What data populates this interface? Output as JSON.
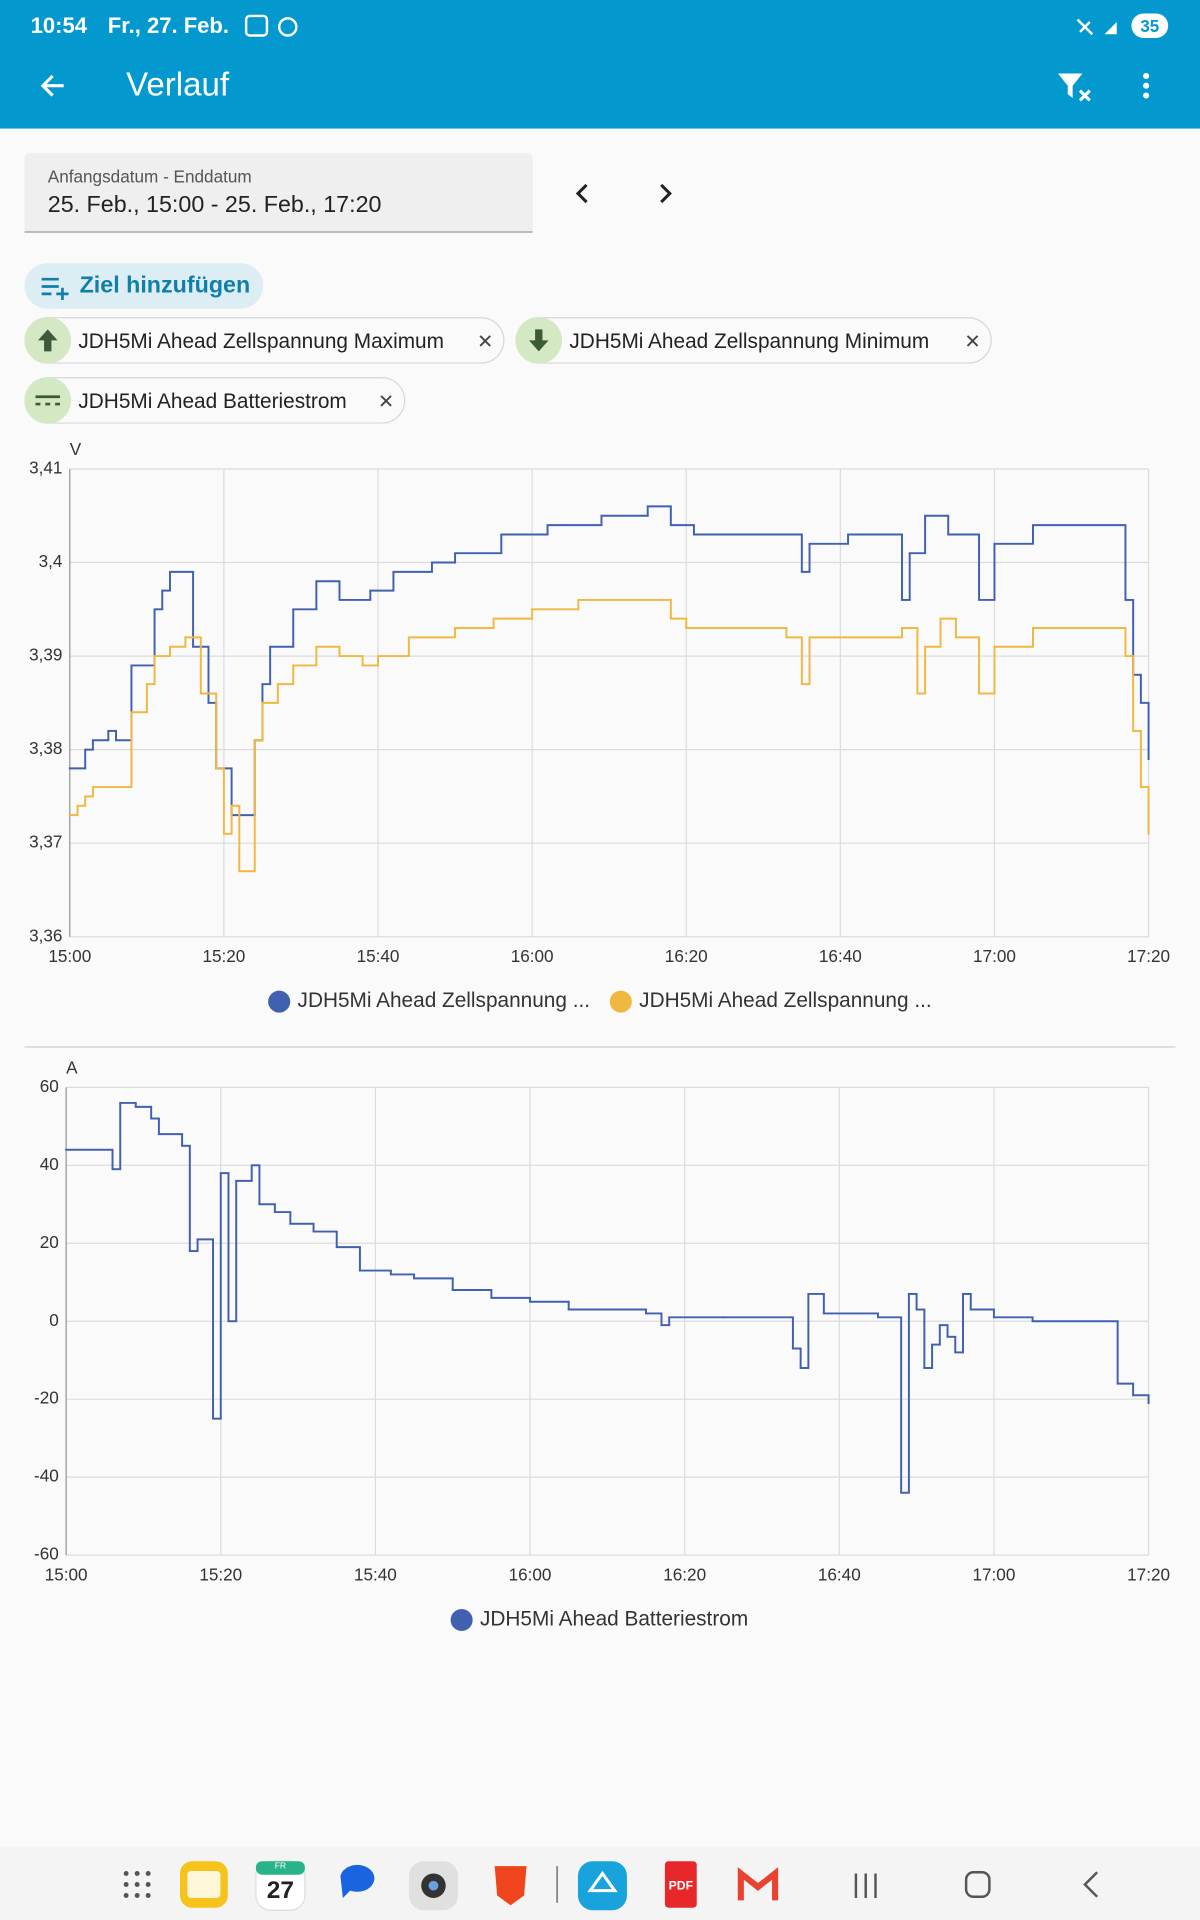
{
  "status_bar": {
    "time": "10:54",
    "date": "Fr., 27. Feb.",
    "battery": "35"
  },
  "toolbar": {
    "title": "Verlauf"
  },
  "date_picker": {
    "label": "Anfangsdatum - Enddatum",
    "value": "25. Feb., 15:00 - 25. Feb., 17:20"
  },
  "add_target": "Ziel hinzufügen",
  "chips": [
    "JDH5Mi Ahead Zellspannung Maximum",
    "JDH5Mi Ahead Zellspannung Minimum",
    "JDH5Mi Ahead Batteriestrom"
  ],
  "dock": {
    "calendar_weekday": "FR",
    "calendar_day": "27",
    "pdf": "PDF"
  },
  "chart_data": [
    {
      "type": "line",
      "line_style": "step",
      "y_unit": "V",
      "grid": true,
      "legend": "bottom",
      "xlim": [
        "15:00",
        "17:20"
      ],
      "xticks": [
        "15:00",
        "15:20",
        "15:40",
        "16:00",
        "16:20",
        "16:40",
        "17:00",
        "17:20"
      ],
      "ylim": [
        3.36,
        3.41
      ],
      "yticks": [
        {
          "value": 3.36,
          "label": "3,36"
        },
        {
          "value": 3.37,
          "label": "3,37"
        },
        {
          "value": 3.38,
          "label": "3,38"
        },
        {
          "value": 3.39,
          "label": "3,39"
        },
        {
          "value": 3.4,
          "label": "3,4"
        },
        {
          "value": 3.41,
          "label": "3,41"
        }
      ],
      "series": [
        {
          "name": "JDH5Mi Ahead Zellspannung ...",
          "color": "#4060b0",
          "x": [
            "15:00",
            "15:02",
            "15:03",
            "15:05",
            "15:06",
            "15:08",
            "15:11",
            "15:12",
            "15:13",
            "15:16",
            "15:18",
            "15:19",
            "15:21",
            "15:24",
            "15:25",
            "15:26",
            "15:29",
            "15:32",
            "15:35",
            "15:39",
            "15:42",
            "15:47",
            "15:50",
            "15:56",
            "16:02",
            "16:09",
            "16:15",
            "16:18",
            "16:21",
            "16:35",
            "16:36",
            "16:41",
            "16:48",
            "16:49",
            "16:51",
            "16:54",
            "16:58",
            "17:00",
            "17:05",
            "17:17",
            "17:18",
            "17:19",
            "17:20"
          ],
          "values": [
            3.378,
            3.38,
            3.381,
            3.382,
            3.381,
            3.389,
            3.395,
            3.397,
            3.399,
            3.391,
            3.385,
            3.378,
            3.373,
            3.381,
            3.387,
            3.391,
            3.395,
            3.398,
            3.396,
            3.397,
            3.399,
            3.4,
            3.401,
            3.403,
            3.404,
            3.405,
            3.406,
            3.404,
            3.403,
            3.399,
            3.402,
            3.403,
            3.396,
            3.401,
            3.405,
            3.403,
            3.396,
            3.402,
            3.404,
            3.396,
            3.388,
            3.385,
            3.379
          ]
        },
        {
          "name": "JDH5Mi Ahead Zellspannung ...",
          "color": "#f0b840",
          "x": [
            "15:00",
            "15:01",
            "15:02",
            "15:03",
            "15:08",
            "15:10",
            "15:11",
            "15:13",
            "15:15",
            "15:17",
            "15:19",
            "15:20",
            "15:21",
            "15:22",
            "15:24",
            "15:25",
            "15:27",
            "15:29",
            "15:32",
            "15:35",
            "15:38",
            "15:40",
            "15:44",
            "15:50",
            "15:55",
            "16:00",
            "16:06",
            "16:18",
            "16:20",
            "16:33",
            "16:35",
            "16:36",
            "16:42",
            "16:48",
            "16:50",
            "16:51",
            "16:53",
            "16:55",
            "16:58",
            "17:00",
            "17:05",
            "17:17",
            "17:18",
            "17:19",
            "17:20"
          ],
          "values": [
            3.373,
            3.374,
            3.375,
            3.376,
            3.384,
            3.387,
            3.39,
            3.391,
            3.392,
            3.386,
            3.378,
            3.371,
            3.374,
            3.367,
            3.381,
            3.385,
            3.387,
            3.389,
            3.391,
            3.39,
            3.389,
            3.39,
            3.392,
            3.393,
            3.394,
            3.395,
            3.396,
            3.394,
            3.393,
            3.392,
            3.387,
            3.392,
            3.392,
            3.393,
            3.386,
            3.391,
            3.394,
            3.392,
            3.386,
            3.391,
            3.393,
            3.39,
            3.382,
            3.376,
            3.371
          ]
        }
      ]
    },
    {
      "type": "line",
      "line_style": "step",
      "y_unit": "A",
      "grid": true,
      "legend": "bottom",
      "xlim": [
        "15:00",
        "17:20"
      ],
      "xticks": [
        "15:00",
        "15:20",
        "15:40",
        "16:00",
        "16:20",
        "16:40",
        "17:00",
        "17:20"
      ],
      "ylim": [
        -60,
        60
      ],
      "yticks": [
        -60,
        -40,
        -20,
        0,
        20,
        40,
        60
      ],
      "series": [
        {
          "name": "JDH5Mi Ahead Batteriestrom",
          "color": "#4060b0",
          "x": [
            "15:00",
            "15:06",
            "15:07",
            "15:09",
            "15:11",
            "15:12",
            "15:15",
            "15:16",
            "15:17",
            "15:19",
            "15:20",
            "15:21",
            "15:22",
            "15:24",
            "15:25",
            "15:27",
            "15:29",
            "15:32",
            "15:35",
            "15:38",
            "15:42",
            "15:45",
            "15:50",
            "15:55",
            "16:00",
            "16:05",
            "16:10",
            "16:15",
            "16:17",
            "16:18",
            "16:25",
            "16:34",
            "16:35",
            "16:36",
            "16:38",
            "16:45",
            "16:48",
            "16:49",
            "16:50",
            "16:51",
            "16:52",
            "16:53",
            "16:54",
            "16:55",
            "16:56",
            "16:57",
            "17:00",
            "17:05",
            "17:16",
            "17:18",
            "17:20"
          ],
          "values": [
            44,
            39,
            56,
            55,
            52,
            48,
            45,
            18,
            21,
            -25,
            38,
            0,
            36,
            40,
            30,
            28,
            25,
            23,
            19,
            13,
            12,
            11,
            8,
            6,
            5,
            3,
            3,
            2,
            -1,
            1,
            1,
            -7,
            -12,
            7,
            2,
            1,
            -44,
            7,
            3,
            -12,
            -6,
            -1,
            -4,
            -8,
            7,
            3,
            1,
            0,
            -16,
            -19,
            -21
          ]
        }
      ]
    }
  ]
}
